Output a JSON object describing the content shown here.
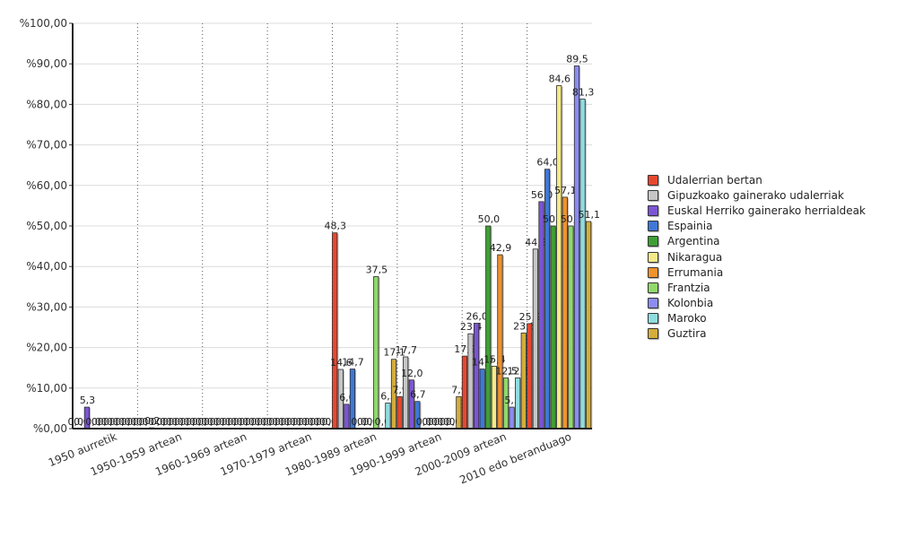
{
  "chart_data": {
    "type": "bar",
    "title": "",
    "xlabel": "",
    "ylabel": "",
    "ylim": [
      0,
      100
    ],
    "y_ticks": [
      "%0,00",
      "%10,00",
      "%20,00",
      "%30,00",
      "%40,00",
      "%50,00",
      "%60,00",
      "%70,00",
      "%80,00",
      "%90,00",
      "%100,00"
    ],
    "grid": true,
    "legend_position": "right",
    "categories": [
      "1950 aurretik",
      "1950-1959 artean",
      "1960-1969 artean",
      "1970-1979 artean",
      "1980-1989 artean",
      "1990-1999 artean",
      "2000-2009 artean",
      "2010 edo beranduago"
    ],
    "series": [
      {
        "name": "Udalerrian bertan",
        "color": "#e8472f",
        "values": [
          0.0,
          0.0,
          0.0,
          0.0,
          48.3,
          7.9,
          17.9,
          25.9
        ],
        "labels": [
          "0,0",
          "0,0",
          "0,0",
          "0,0",
          "48,3",
          "7,9",
          "17,9",
          "25,9"
        ]
      },
      {
        "name": "Gipuzkoako gainerako udalerriak",
        "color": "#c6c6c6",
        "values": [
          0.0,
          0.0,
          0.0,
          0.0,
          14.6,
          17.7,
          23.4,
          44.3
        ],
        "labels": [
          "0,0",
          "0,0",
          "0,0",
          "0,0",
          "14,6",
          "17,7",
          "23,4",
          "44,3"
        ]
      },
      {
        "name": "Euskal Herriko gainerako herrialdeak",
        "color": "#7c55d4",
        "values": [
          5.3,
          0.2,
          0.0,
          0.0,
          6.0,
          12.0,
          26.0,
          56.0
        ],
        "labels": [
          "5,3",
          "0,2",
          "0,0",
          "0,0",
          "6,0",
          "12,0",
          "26,0",
          "56,0"
        ]
      },
      {
        "name": "Espainia",
        "color": "#3f78d6",
        "values": [
          0.0,
          0.0,
          0.0,
          0.0,
          14.7,
          6.7,
          14.7,
          64.0
        ],
        "labels": [
          "0,0",
          "0,0",
          "0,0",
          "0,0",
          "14,7",
          "6,7",
          "14,7",
          "64,0"
        ]
      },
      {
        "name": "Argentina",
        "color": "#3f9f34",
        "values": [
          0.0,
          0.0,
          0.0,
          0.0,
          0.0,
          0.0,
          50.0,
          50.0
        ],
        "labels": [
          "0,0",
          "0,0",
          "0,0",
          "0,0",
          "0,0",
          "0,0",
          "50,0",
          "50,0"
        ]
      },
      {
        "name": "Nikaragua",
        "color": "#f4ea8a",
        "values": [
          0.0,
          0.0,
          0.0,
          0.0,
          0.0,
          0.0,
          15.4,
          84.6
        ],
        "labels": [
          "0,0",
          "0,0",
          "0,0",
          "0,0",
          "0,0",
          "0,0",
          "15,4",
          "84,6"
        ]
      },
      {
        "name": "Errumania",
        "color": "#f0922e",
        "values": [
          0.0,
          0.0,
          0.0,
          0.0,
          0.0,
          0.0,
          42.9,
          57.1
        ],
        "labels": [
          "0,0",
          "0,0",
          "0,0",
          "0,0",
          "0,0",
          "0,0",
          "42,9",
          "57,1"
        ]
      },
      {
        "name": "Frantzia",
        "color": "#90d96b",
        "values": [
          0.0,
          0.0,
          0.0,
          0.0,
          37.5,
          0.0,
          12.5,
          50.0
        ],
        "labels": [
          "0,0",
          "0,0",
          "0,0",
          "0,0",
          "37,5",
          "0,0",
          "12,5",
          "50,0"
        ]
      },
      {
        "name": "Kolonbia",
        "color": "#8c8cf2",
        "values": [
          0.0,
          0.0,
          0.0,
          0.0,
          0.0,
          0.0,
          5.3,
          89.5
        ],
        "labels": [
          "0,0",
          "0,0",
          "0,0",
          "0,0",
          "0,0",
          "0,0",
          "5,3",
          "89,5"
        ]
      },
      {
        "name": "Maroko",
        "color": "#8fdde0",
        "values": [
          0.0,
          0.0,
          0.0,
          0.0,
          6.3,
          0.0,
          12.5,
          81.3
        ],
        "labels": [
          "0,0",
          "0,0",
          "0,0",
          "0,0",
          "6,3",
          "0,0",
          "12,5",
          "81,3"
        ]
      },
      {
        "name": "Guztira",
        "color": "#d4ad3b",
        "values": [
          0.0,
          0.0,
          0.0,
          0.0,
          17.1,
          7.9,
          23.6,
          51.1
        ],
        "labels": [
          "0,0",
          "0,0",
          "0,0",
          "0,0",
          "17,1",
          "7,9",
          "23,6",
          "51,1"
        ]
      }
    ]
  }
}
